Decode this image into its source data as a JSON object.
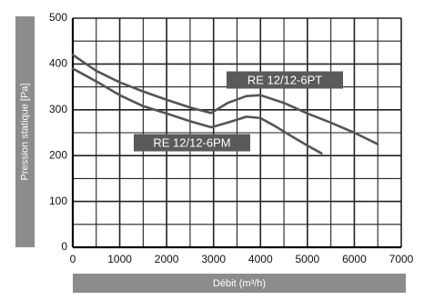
{
  "chart_data": {
    "type": "line",
    "xlabel": "Débit (m³/h)",
    "ylabel": "Pression statique [Pa]",
    "xlim": [
      0,
      7000
    ],
    "ylim": [
      0,
      500
    ],
    "x_ticks": [
      "0",
      "1000",
      "2000",
      "3000",
      "4000",
      "5000",
      "6000",
      "7000"
    ],
    "y_ticks": [
      "0",
      "100",
      "200",
      "300",
      "400",
      "500"
    ],
    "grid": true,
    "series": [
      {
        "name": "RE 12/12-6PT",
        "x": [
          0,
          500,
          1000,
          1500,
          2000,
          2500,
          2950,
          3300,
          3700,
          4000,
          4500,
          5000,
          5500,
          6000,
          6500
        ],
        "y": [
          420,
          385,
          360,
          340,
          322,
          305,
          293,
          315,
          330,
          332,
          315,
          292,
          272,
          250,
          225
        ]
      },
      {
        "name": "RE 12/12-6PM",
        "x": [
          0,
          500,
          1000,
          1500,
          2000,
          2500,
          2950,
          3300,
          3700,
          4000,
          4300,
          4700,
          5000,
          5300
        ],
        "y": [
          390,
          362,
          332,
          308,
          292,
          275,
          262,
          272,
          285,
          282,
          265,
          240,
          222,
          205
        ]
      }
    ],
    "colors": {
      "line": "#555555",
      "grid": "#222222",
      "axis_label_bg": "#8c8c8c",
      "series_label_bg": "#5a5a5a",
      "series_label_text": "#ffffff"
    }
  }
}
